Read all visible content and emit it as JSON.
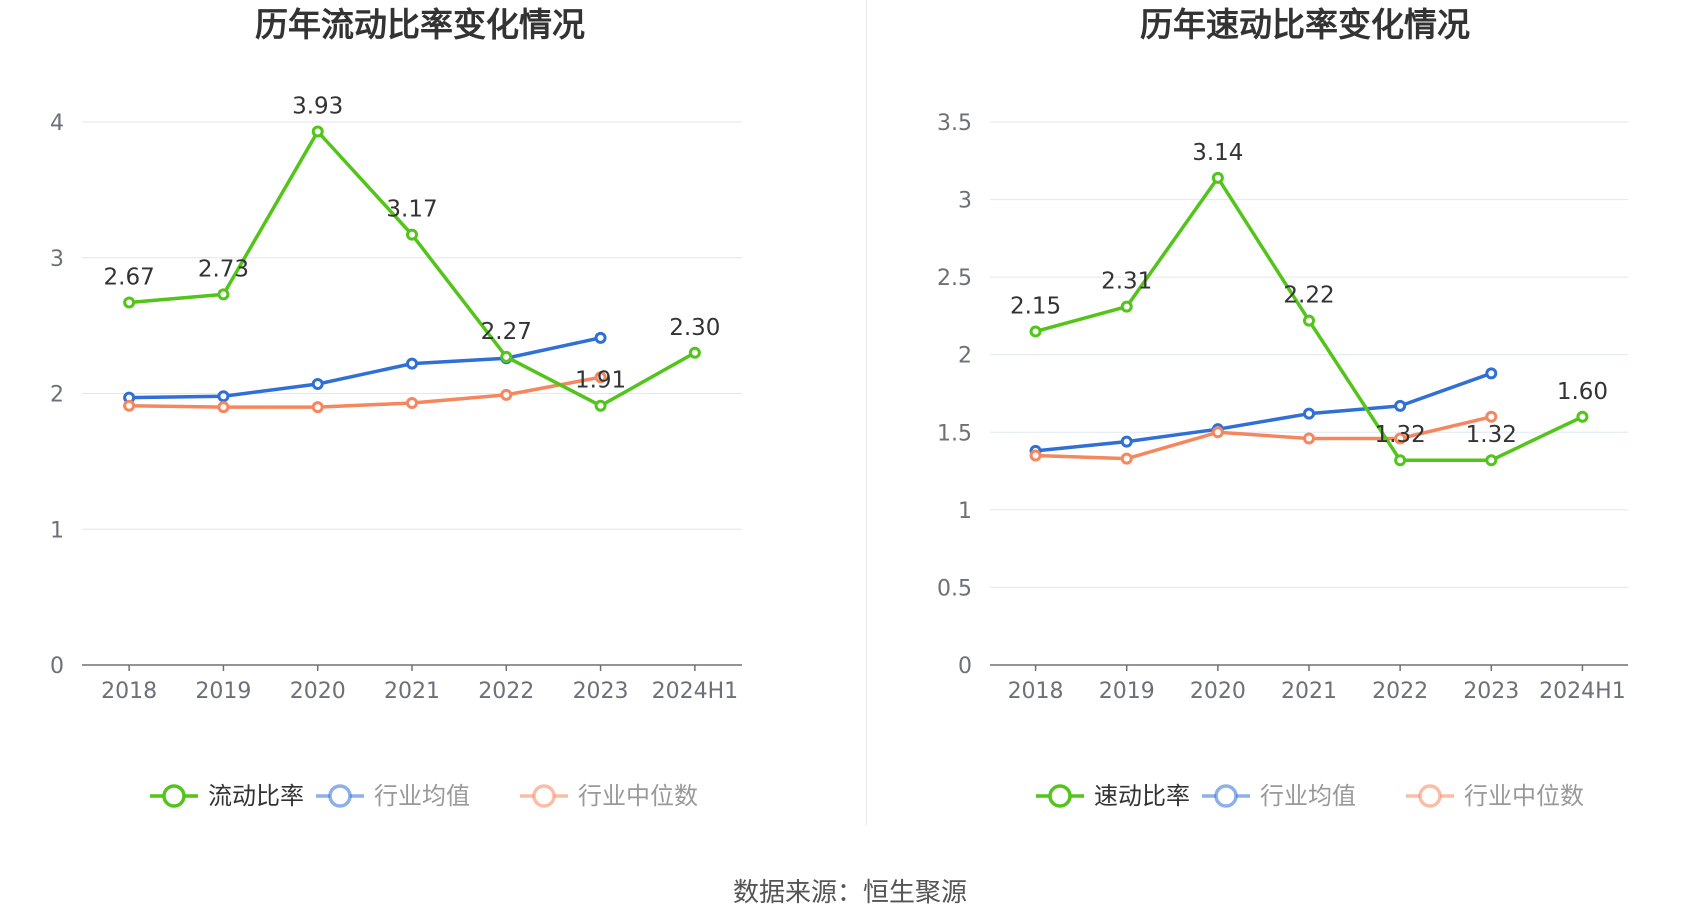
{
  "source": "数据来源：恒生聚源",
  "colors": {
    "main": "#52c41a",
    "avg": "#2f6fd6",
    "median": "#f5875f",
    "grid": "#e0e6f1",
    "axis": "#6e7079"
  },
  "chart_data": [
    {
      "type": "line",
      "title": "历年流动比率变化情况",
      "categories": [
        "2018",
        "2019",
        "2020",
        "2021",
        "2022",
        "2023",
        "2024H1"
      ],
      "ylim": [
        0,
        4
      ],
      "yticks": [
        0,
        1,
        2,
        3,
        4
      ],
      "grid": true,
      "legend_position": "bottom",
      "series": [
        {
          "name": "流动比率",
          "color": "#52c41a",
          "values": [
            2.67,
            2.73,
            3.93,
            3.17,
            2.27,
            1.91,
            2.3
          ],
          "labels": [
            "2.67",
            "2.73",
            "3.93",
            "3.17",
            "2.27",
            "1.91",
            "2.30"
          ]
        },
        {
          "name": "行业均值",
          "color": "#2f6fd6",
          "values": [
            1.97,
            1.98,
            2.07,
            2.22,
            2.26,
            2.41,
            null
          ]
        },
        {
          "name": "行业中位数",
          "color": "#f5875f",
          "values": [
            1.91,
            1.9,
            1.9,
            1.93,
            1.99,
            2.12,
            null
          ]
        }
      ]
    },
    {
      "type": "line",
      "title": "历年速动比率变化情况",
      "categories": [
        "2018",
        "2019",
        "2020",
        "2021",
        "2022",
        "2023",
        "2024H1"
      ],
      "ylim": [
        0,
        3.5
      ],
      "yticks": [
        0,
        0.5,
        1,
        1.5,
        2,
        2.5,
        3,
        3.5
      ],
      "grid": true,
      "legend_position": "bottom",
      "series": [
        {
          "name": "速动比率",
          "color": "#52c41a",
          "values": [
            2.15,
            2.31,
            3.14,
            2.22,
            1.32,
            1.32,
            1.6
          ],
          "labels": [
            "2.15",
            "2.31",
            "3.14",
            "2.22",
            "1.32",
            "1.32",
            "1.60"
          ]
        },
        {
          "name": "行业均值",
          "color": "#2f6fd6",
          "values": [
            1.38,
            1.44,
            1.52,
            1.62,
            1.67,
            1.88,
            null
          ]
        },
        {
          "name": "行业中位数",
          "color": "#f5875f",
          "values": [
            1.35,
            1.33,
            1.5,
            1.46,
            1.46,
            1.6,
            null
          ]
        }
      ]
    }
  ]
}
